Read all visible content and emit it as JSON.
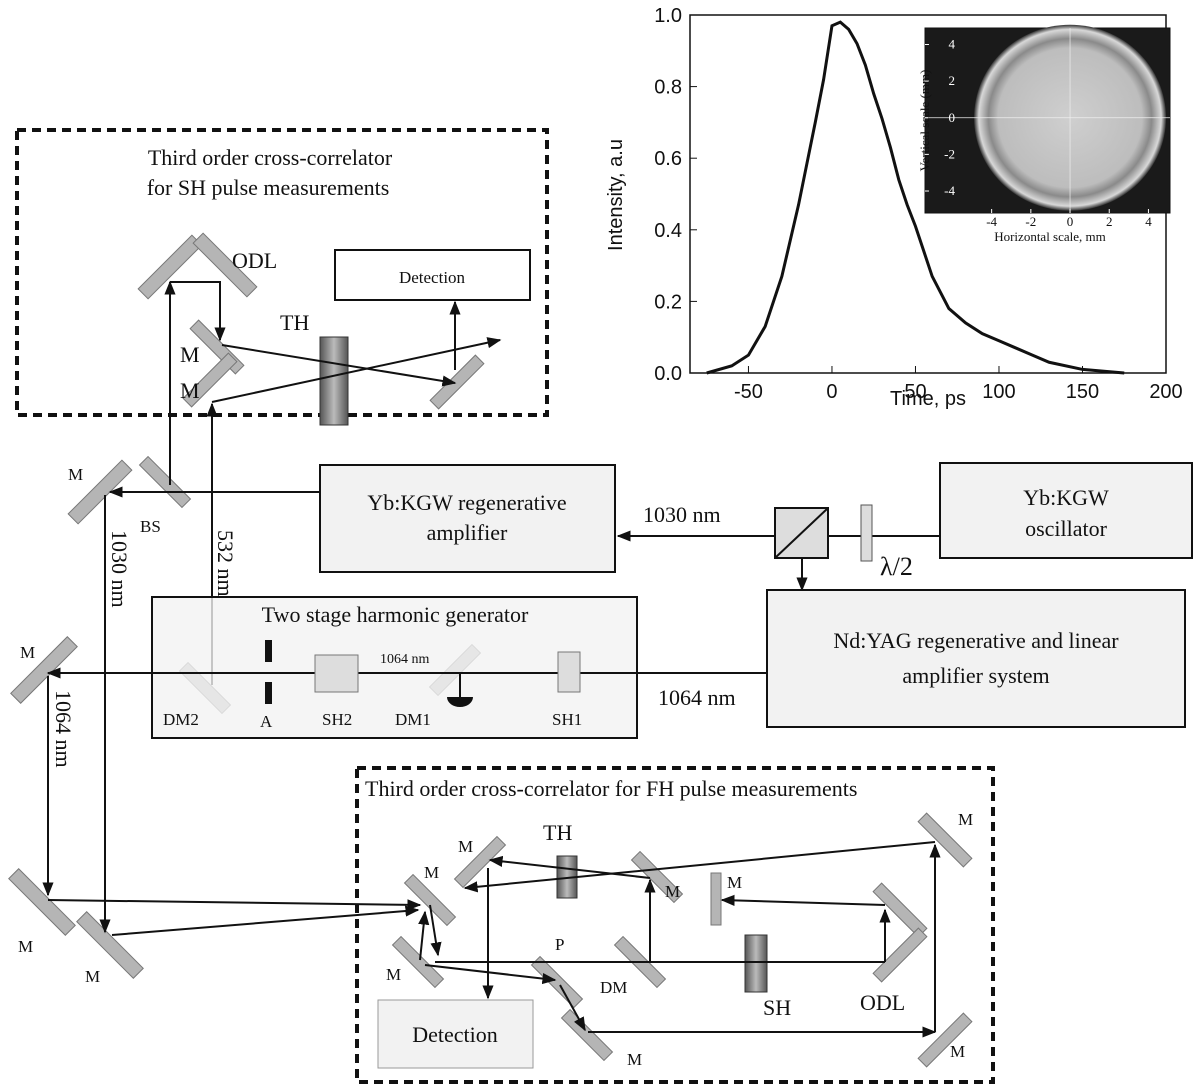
{
  "labels": [
    "Third order cross-correlator",
    "for SH pulse measurements",
    "Detection",
    "ODL",
    "TH",
    "M",
    "M",
    "Yb:KGW regenerative",
    "amplifier",
    "1030 nm",
    "Yb:KGW",
    "oscillator",
    "λ/2",
    "M",
    "BS",
    "1030 nm",
    "532 nm",
    "Two stage harmonic generator",
    "1064 nm",
    "DM2",
    "A",
    "SH2",
    "DM1",
    "SH1",
    "Nd:YAG regenerative and linear",
    "amplifier system",
    "1064 nm",
    "M",
    "1064 nm",
    "M",
    "M",
    "Third order cross-correlator for FH pulse measurements",
    "TH",
    "M",
    "M",
    "M",
    "M",
    "M",
    "M",
    "P",
    "DM",
    "SH",
    "ODL",
    "Detection",
    "M",
    "M"
  ],
  "chart_data": {
    "type": "line",
    "xlabel": "Time, ps",
    "ylabel": "Intensity, a.u",
    "x": [
      -75,
      -60,
      -50,
      -40,
      -30,
      -20,
      -10,
      -5,
      0,
      5,
      10,
      15,
      20,
      25,
      30,
      35,
      40,
      45,
      50,
      55,
      60,
      70,
      80,
      90,
      100,
      110,
      120,
      130,
      150,
      175
    ],
    "values": [
      0.0,
      0.02,
      0.05,
      0.13,
      0.27,
      0.47,
      0.7,
      0.82,
      0.97,
      0.98,
      0.96,
      0.92,
      0.86,
      0.78,
      0.71,
      0.63,
      0.54,
      0.47,
      0.41,
      0.34,
      0.27,
      0.18,
      0.14,
      0.11,
      0.09,
      0.07,
      0.05,
      0.03,
      0.01,
      0.0
    ],
    "color": "#111111",
    "xlim": [
      -85,
      200
    ],
    "ylim": [
      0,
      1
    ],
    "xticks": [
      -50,
      0,
      50,
      100,
      150,
      200
    ],
    "yticks": [
      {
        "value": 0,
        "label": "0.0"
      },
      {
        "value": 0.2,
        "label": "0.2"
      },
      {
        "value": 0.4,
        "label": "0.4"
      },
      {
        "value": 0.6,
        "label": "0.6"
      },
      {
        "value": 0.8,
        "label": "0.8"
      },
      {
        "value": 1,
        "label": "1.0"
      }
    ]
  },
  "inset": {
    "xlabel": "Horizontal scale, mm",
    "ylabel": "Vertical scale (mm)",
    "xlim": [
      -7.4,
      5.1
    ],
    "ylim": [
      -5.2,
      4.9
    ],
    "xticks": [
      -4,
      -2,
      0,
      2,
      4
    ],
    "yticks": [
      -4,
      -2,
      0,
      2,
      4
    ]
  }
}
